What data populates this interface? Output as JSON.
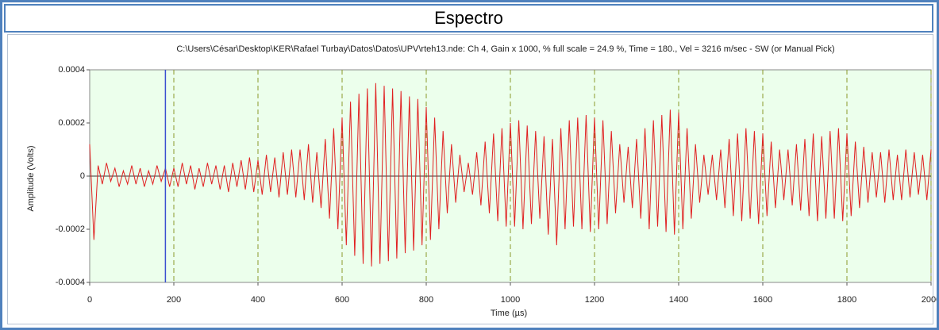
{
  "window_title": "Espectro",
  "chart_data": {
    "type": "line",
    "title": "C:\\Users\\César\\Desktop\\KER\\Rafael Turbay\\Datos\\Datos\\UPV\\rteh13.nde: Ch 4, Gain x 1000, % full scale = 24.9 %, Time = 180., Vel = 3216 m/sec - SW (or Manual Pick)",
    "x_label": "Time (µs)",
    "y_label": "Amplitude (Volts)",
    "xlim": [
      0,
      2000
    ],
    "xticks": [
      0,
      200,
      400,
      600,
      800,
      1000,
      1200,
      1400,
      1600,
      1800,
      2000
    ],
    "ylim": [
      -0.0004,
      0.0004
    ],
    "yticks": [
      -0.0004,
      -0.0002,
      0,
      0.0002,
      0.0004
    ],
    "grid": true,
    "pick_x": 180,
    "pick_color": "#3b4fd0",
    "background": "#ecffec",
    "x": [
      0,
      10,
      20,
      30,
      40,
      50,
      60,
      70,
      80,
      90,
      100,
      110,
      120,
      130,
      140,
      150,
      160,
      170,
      180,
      190,
      200,
      210,
      220,
      230,
      240,
      250,
      260,
      270,
      280,
      290,
      300,
      310,
      320,
      330,
      340,
      350,
      360,
      370,
      380,
      390,
      400,
      410,
      420,
      430,
      440,
      450,
      460,
      470,
      480,
      490,
      500,
      510,
      520,
      530,
      540,
      550,
      560,
      570,
      580,
      590,
      600,
      610,
      620,
      630,
      640,
      650,
      660,
      670,
      680,
      690,
      700,
      710,
      720,
      730,
      740,
      750,
      760,
      770,
      780,
      790,
      800,
      810,
      820,
      830,
      840,
      850,
      860,
      870,
      880,
      890,
      900,
      910,
      920,
      930,
      940,
      950,
      960,
      970,
      980,
      990,
      1000,
      1010,
      1020,
      1030,
      1040,
      1050,
      1060,
      1070,
      1080,
      1090,
      1100,
      1110,
      1120,
      1130,
      1140,
      1150,
      1160,
      1170,
      1180,
      1190,
      1200,
      1210,
      1220,
      1230,
      1240,
      1250,
      1260,
      1270,
      1280,
      1290,
      1300,
      1310,
      1320,
      1330,
      1340,
      1350,
      1360,
      1370,
      1380,
      1390,
      1400,
      1410,
      1420,
      1430,
      1440,
      1450,
      1460,
      1470,
      1480,
      1490,
      1500,
      1510,
      1520,
      1530,
      1540,
      1550,
      1560,
      1570,
      1580,
      1590,
      1600,
      1610,
      1620,
      1630,
      1640,
      1650,
      1660,
      1670,
      1680,
      1690,
      1700,
      1710,
      1720,
      1730,
      1740,
      1750,
      1760,
      1770,
      1780,
      1790,
      1800,
      1810,
      1820,
      1830,
      1840,
      1850,
      1860,
      1870,
      1880,
      1890,
      1900,
      1910,
      1920,
      1930,
      1940,
      1950,
      1960,
      1970,
      1980,
      1990,
      2000
    ],
    "series": [
      {
        "color": "#e02020",
        "values": [
          0.00012,
          -0.00024,
          4e-05,
          -3e-05,
          5e-05,
          -2e-05,
          3e-05,
          -4e-05,
          2e-05,
          -3e-05,
          4e-05,
          -3e-05,
          3e-05,
          -4e-05,
          2e-05,
          -3e-05,
          4e-05,
          -2e-05,
          3e-05,
          -4e-05,
          3e-05,
          -4e-05,
          5e-05,
          -3e-05,
          4e-05,
          -5e-05,
          3e-05,
          -4e-05,
          5e-05,
          -3e-05,
          4e-05,
          -5e-05,
          4e-05,
          -6e-05,
          5e-05,
          -4e-05,
          6e-05,
          -5e-05,
          7e-05,
          -6e-05,
          6e-05,
          -7e-05,
          8e-05,
          -6e-05,
          7e-05,
          -8e-05,
          9e-05,
          -7e-05,
          0.0001,
          -8e-05,
          0.0001,
          -9e-05,
          0.00012,
          -0.0001,
          9e-05,
          -0.00012,
          0.00014,
          -0.00016,
          0.00018,
          -0.0002,
          0.00022,
          -0.00026,
          0.00028,
          -0.0003,
          0.00031,
          -0.00033,
          0.00033,
          -0.00034,
          0.00035,
          -0.00033,
          0.00034,
          -0.00032,
          0.00033,
          -0.00031,
          0.00032,
          -0.00029,
          0.0003,
          -0.00028,
          0.00029,
          -0.00026,
          0.00026,
          -0.00024,
          0.00022,
          -0.0002,
          0.00017,
          -0.00014,
          0.00012,
          -0.0001,
          8e-05,
          -6e-05,
          5e-05,
          -7e-05,
          9e-05,
          -0.00011,
          0.00013,
          -0.00014,
          0.00016,
          -0.00017,
          0.00018,
          -0.00019,
          0.0002,
          -0.00019,
          0.00021,
          -0.0002,
          0.00019,
          -0.00018,
          0.00017,
          -0.00016,
          0.00015,
          -0.00022,
          0.00014,
          -0.00026,
          0.00018,
          -0.0002,
          0.00021,
          -0.00019,
          0.00022,
          -0.0002,
          0.00023,
          -0.00021,
          0.00022,
          -0.0002,
          0.00021,
          -0.00018,
          0.00017,
          -0.00014,
          0.00012,
          -0.0001,
          0.00011,
          -0.00012,
          0.00014,
          -0.00016,
          0.00018,
          -0.0002,
          0.00021,
          -0.00019,
          0.00023,
          -0.00021,
          0.00025,
          -0.00022,
          0.00024,
          -0.0002,
          0.00018,
          -0.00016,
          0.00012,
          -0.0001,
          8e-05,
          -7e-05,
          8e-05,
          -9e-05,
          0.0001,
          -0.00012,
          0.00014,
          -0.00015,
          0.00016,
          -0.00017,
          0.00018,
          -0.00016,
          0.00017,
          -0.00018,
          0.00016,
          -0.00015,
          0.00013,
          -0.00012,
          0.0001,
          -9e-05,
          0.0001,
          -0.00011,
          0.00012,
          -0.00013,
          0.00014,
          -0.00015,
          0.00016,
          -0.00017,
          0.00015,
          -0.00016,
          0.00017,
          -0.00016,
          0.00018,
          -0.00017,
          0.00016,
          -0.00015,
          0.00013,
          -0.00012,
          0.00011,
          -0.0001,
          9e-05,
          -8e-05,
          9e-05,
          -0.0001,
          0.0001,
          -9e-05,
          8e-05,
          -9e-05,
          0.0001,
          -8e-05,
          9e-05,
          -7e-05,
          8e-05,
          -9e-05,
          0.0001
        ]
      }
    ]
  }
}
